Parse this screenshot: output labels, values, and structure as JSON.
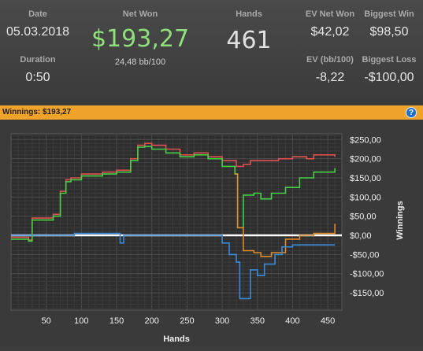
{
  "stats": {
    "date_label": "Date",
    "date_value": "05.03.2018",
    "duration_label": "Duration",
    "duration_value": "0:50",
    "net_won_label": "Net Won",
    "net_won_value": "$193,27",
    "bb_per_100": "24,48 bb/100",
    "hands_label": "Hands",
    "hands_value": "461",
    "ev_net_won_label": "EV Net Won",
    "ev_net_won_value": "$42,02",
    "biggest_win_label": "Biggest Win",
    "biggest_win_value": "$98,50",
    "ev_bb100_label": "EV (bb/100)",
    "ev_bb100_value": "-8,22",
    "biggest_loss_label": "Biggest Loss",
    "biggest_loss_value": "-$100,00"
  },
  "winnings_bar": {
    "label": "Winnings: $193,27",
    "help_icon": "question-icon",
    "help_text": "?"
  },
  "colors": {
    "net_won": "#8ee07a",
    "bar": "#f0a32a",
    "red_series": "#e05050",
    "green_series": "#46d046",
    "orange_series": "#e08a2c",
    "blue_series": "#3a8ad8"
  },
  "chart_data": {
    "type": "line",
    "xlabel": "Hands",
    "ylabel": "Winnings",
    "xlim": [
      0,
      470
    ],
    "ylim": [
      -195,
      265
    ],
    "x_ticks": [
      50,
      100,
      150,
      200,
      250,
      300,
      350,
      400,
      450
    ],
    "x_tick_labels": [
      "50",
      "100",
      "150",
      "200",
      "250",
      "300",
      "350",
      "400",
      "450"
    ],
    "y_ticks": [
      250,
      200,
      150,
      100,
      50,
      0,
      -50,
      -100,
      -150
    ],
    "y_tick_labels": [
      "$250,00",
      "$200,00",
      "$150,00",
      "$100,00",
      "$50,00",
      "$0,00",
      "-$50,00",
      "-$100,00",
      "-$150,00"
    ],
    "grid": true,
    "legend": "none",
    "series": [
      {
        "color": "#e05050",
        "x": [
          0,
          25,
          30,
          60,
          70,
          78,
          85,
          100,
          130,
          150,
          170,
          180,
          190,
          200,
          220,
          240,
          260,
          280,
          300,
          320,
          330,
          340,
          360,
          380,
          400,
          420,
          430,
          460
        ],
        "y": [
          -5,
          -12,
          45,
          55,
          115,
          145,
          150,
          160,
          165,
          170,
          200,
          235,
          240,
          235,
          225,
          210,
          215,
          205,
          195,
          180,
          185,
          195,
          195,
          200,
          205,
          200,
          210,
          205
        ]
      },
      {
        "color": "#46d046",
        "x": [
          0,
          25,
          30,
          60,
          70,
          78,
          85,
          100,
          130,
          150,
          170,
          180,
          190,
          200,
          220,
          240,
          260,
          280,
          300,
          318,
          322,
          330,
          345,
          355,
          370,
          390,
          410,
          430,
          460
        ],
        "y": [
          -10,
          -15,
          40,
          50,
          110,
          140,
          145,
          155,
          160,
          165,
          195,
          230,
          232,
          225,
          215,
          205,
          210,
          200,
          180,
          160,
          20,
          105,
          110,
          95,
          110,
          125,
          150,
          165,
          175
        ]
      },
      {
        "color": "#e08a2c",
        "x": [
          318,
          322,
          330,
          345,
          355,
          370,
          390,
          410,
          430,
          460
        ],
        "y": [
          160,
          20,
          -40,
          -45,
          -55,
          -45,
          -10,
          0,
          5,
          30
        ]
      },
      {
        "color": "#3a8ad8",
        "x": [
          0,
          80,
          90,
          145,
          155,
          160,
          165,
          300,
          310,
          320,
          325,
          340,
          345,
          350,
          360,
          375,
          385,
          400,
          460
        ],
        "y": [
          0,
          0,
          5,
          5,
          -20,
          0,
          0,
          -20,
          -50,
          -70,
          -165,
          -90,
          -90,
          -105,
          -75,
          -50,
          -30,
          -25,
          -25
        ]
      }
    ]
  }
}
